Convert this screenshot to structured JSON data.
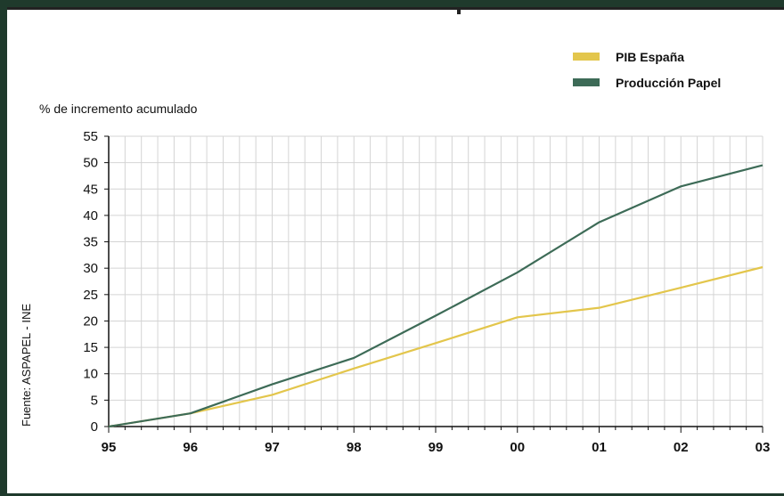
{
  "chart_data": {
    "type": "line",
    "ylabel": "% de incremento acumulado",
    "source": "Fuente: ASPAPEL - INE",
    "categories": [
      "95",
      "96",
      "97",
      "98",
      "99",
      "00",
      "01",
      "02",
      "03"
    ],
    "ylim": [
      0,
      55
    ],
    "yticks": [
      0,
      5,
      10,
      15,
      20,
      25,
      30,
      35,
      40,
      45,
      50,
      55
    ],
    "grid": true,
    "legend_position": "top-right",
    "series": [
      {
        "name": "PIB España",
        "color": "#e3c64c",
        "values": [
          0,
          2.5,
          6,
          11,
          15.8,
          20.7,
          22.5,
          26.3,
          30.2
        ]
      },
      {
        "name": "Producción Papel",
        "color": "#3d6b57",
        "values": [
          0,
          2.5,
          8,
          13,
          21,
          29.2,
          38.7,
          45.5,
          49.5
        ]
      }
    ]
  }
}
